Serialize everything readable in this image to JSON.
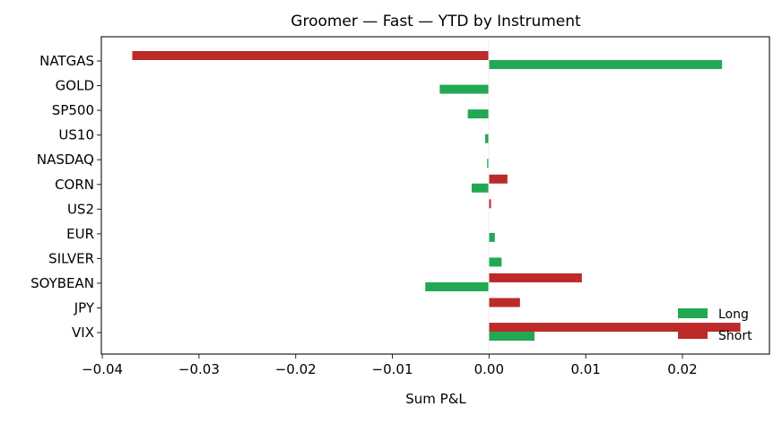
{
  "chart_data": {
    "type": "bar",
    "orientation": "horizontal",
    "title": "Groomer — Fast — YTD by Instrument",
    "xlabel": "Sum P&L",
    "ylabel": "",
    "xlim": [
      -0.0401,
      0.029
    ],
    "xticks": [
      -0.04,
      -0.03,
      -0.02,
      -0.01,
      0.0,
      0.01,
      0.02
    ],
    "xtick_labels": [
      "−0.04",
      "−0.03",
      "−0.02",
      "−0.01",
      "0.00",
      "0.01",
      "0.02"
    ],
    "categories": [
      "NATGAS",
      "GOLD",
      "SP500",
      "US10",
      "NASDAQ",
      "CORN",
      "US2",
      "EUR",
      "SILVER",
      "SOYBEAN",
      "JPY",
      "VIX"
    ],
    "series": [
      {
        "name": "Long",
        "color": "#22a853",
        "values": [
          0.0241,
          -0.0051,
          -0.0022,
          -0.0004,
          -0.0002,
          -0.0018,
          0,
          0.0006,
          0.0013,
          -0.0066,
          0,
          0.0047
        ]
      },
      {
        "name": "Short",
        "color": "#bd2a2a",
        "values": [
          -0.0369,
          0,
          0,
          0,
          0,
          0.0019,
          0.0002,
          0,
          0,
          0.0096,
          0.0032,
          0.026
        ]
      }
    ],
    "legend_position": "bottom-right",
    "grid": false
  }
}
